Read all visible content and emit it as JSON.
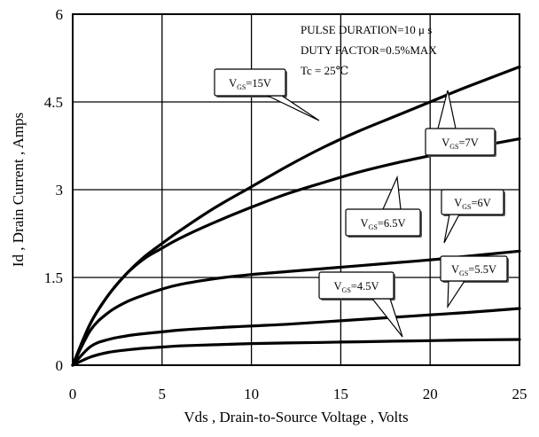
{
  "chart_data": {
    "type": "line",
    "xlabel": "Vds , Drain-to-Source Voltage , Volts",
    "ylabel": "Id , Drain Current , Amps",
    "xlim": [
      0,
      25
    ],
    "ylim": [
      0,
      6
    ],
    "xticks": [
      0,
      5,
      10,
      15,
      20,
      25
    ],
    "yticks": [
      0,
      1.5,
      3,
      4.5,
      6
    ],
    "xtick_labels": [
      "0",
      "5",
      "10",
      "15",
      "20",
      "25"
    ],
    "ytick_labels": [
      "0",
      "1.5",
      "3",
      "4.5",
      "6"
    ],
    "grid": true,
    "annotations": [
      "PULSE DURATION=10 μ s",
      "DUTY FACTOR=0.5%MAX",
      "Tc = 25℃"
    ],
    "series": [
      {
        "name": "VGS=15V",
        "label_main": "V",
        "label_sub": "GS",
        "label_tail": "=15V",
        "x": [
          0,
          1,
          2,
          3,
          4,
          5,
          6,
          8,
          10,
          12,
          14,
          16,
          18,
          20,
          22,
          25
        ],
        "y": [
          0,
          0.72,
          1.2,
          1.56,
          1.85,
          2.08,
          2.3,
          2.7,
          3.05,
          3.4,
          3.72,
          4.0,
          4.25,
          4.5,
          4.75,
          5.1
        ]
      },
      {
        "name": "VGS=7V",
        "label_main": "V",
        "label_sub": "GS",
        "label_tail": "=7V",
        "x": [
          0,
          1,
          2,
          3,
          4,
          5,
          6,
          8,
          10,
          12,
          14,
          16,
          18,
          20,
          22,
          25
        ],
        "y": [
          0,
          0.72,
          1.2,
          1.56,
          1.82,
          2.0,
          2.17,
          2.45,
          2.7,
          2.93,
          3.12,
          3.3,
          3.45,
          3.58,
          3.7,
          3.87
        ]
      },
      {
        "name": "VGS=6.5V",
        "label_main": "V",
        "label_sub": "GS",
        "label_tail": "=6.5V",
        "x": [
          0,
          1,
          2,
          3,
          4,
          5,
          6,
          8,
          10,
          12,
          14,
          16,
          18,
          20,
          22,
          25
        ],
        "y": [
          0,
          0.6,
          0.9,
          1.08,
          1.2,
          1.3,
          1.38,
          1.48,
          1.55,
          1.6,
          1.65,
          1.7,
          1.75,
          1.8,
          1.86,
          1.95
        ]
      },
      {
        "name": "VGS=6V",
        "label_main": "V",
        "label_sub": "GS",
        "label_tail": "=6V",
        "x": [
          0,
          1,
          2,
          3,
          4,
          5,
          6,
          8,
          10,
          12,
          14,
          16,
          18,
          20,
          22,
          25
        ],
        "y": [
          0,
          0.32,
          0.44,
          0.5,
          0.54,
          0.57,
          0.6,
          0.64,
          0.67,
          0.7,
          0.74,
          0.78,
          0.82,
          0.86,
          0.9,
          0.97
        ]
      },
      {
        "name": "VGS=5.5V",
        "label_main": "V",
        "label_sub": "GS",
        "label_tail": "=5.5V",
        "x": [
          0,
          1,
          2,
          3,
          4,
          5,
          6,
          8,
          10,
          12,
          14,
          16,
          18,
          20,
          22,
          25
        ],
        "y": [
          0,
          0.14,
          0.22,
          0.26,
          0.29,
          0.31,
          0.33,
          0.35,
          0.37,
          0.38,
          0.39,
          0.4,
          0.41,
          0.42,
          0.43,
          0.44
        ]
      },
      {
        "name": "VGS=4.5V",
        "label_main": "V",
        "label_sub": "GS",
        "label_tail": "=4.5V",
        "x": [
          0,
          25
        ],
        "y": [
          0,
          0
        ]
      }
    ]
  }
}
